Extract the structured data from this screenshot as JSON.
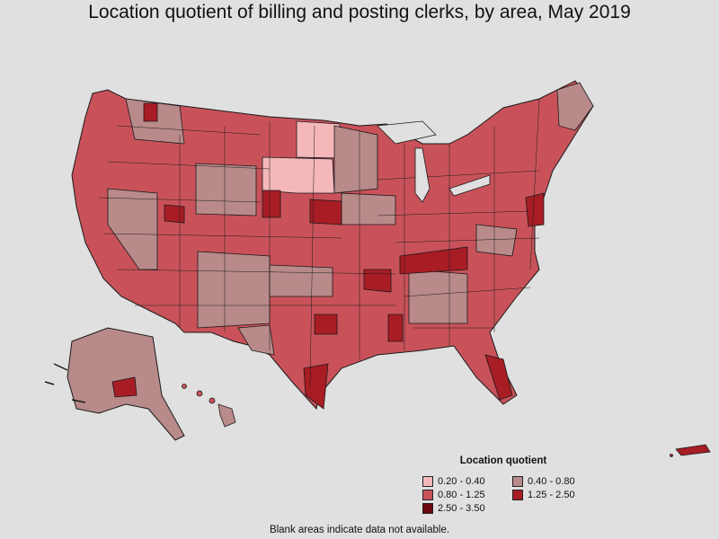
{
  "title": "Location quotient of billing and posting clerks, by area, May 2019",
  "legend": {
    "title": "Location quotient",
    "items": [
      {
        "label": "0.20 - 0.40",
        "color": "#f4b8bb"
      },
      {
        "label": "0.40 - 0.80",
        "color": "#b98a8a"
      },
      {
        "label": "0.80 - 1.25",
        "color": "#c9525a"
      },
      {
        "label": "1.25 - 2.50",
        "color": "#a81c24"
      },
      {
        "label": "2.50 - 3.50",
        "color": "#6a0a0e"
      }
    ]
  },
  "footnote": "Blank areas indicate data not available.",
  "colors": {
    "background": "#e0e0e0",
    "border": "#1a1a1a"
  }
}
